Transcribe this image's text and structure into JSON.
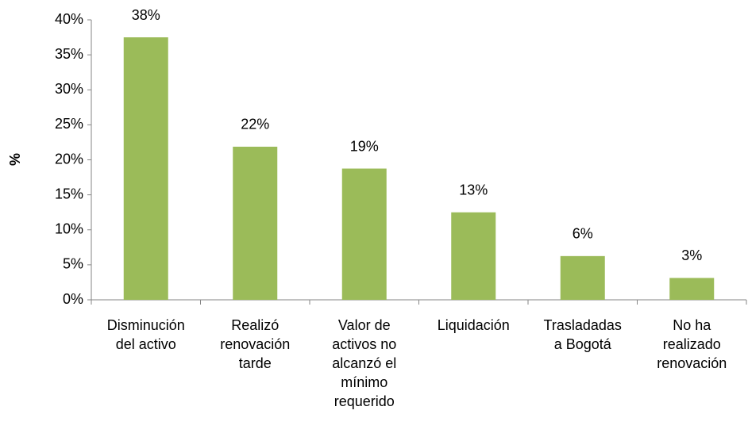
{
  "chart_data": {
    "type": "bar",
    "y_label": "%",
    "categories": [
      "Disminución\ndel activo",
      "Realizó\nrenovación\ntarde",
      "Valor de\nactivos no\nalcanzó el\nmínimo\nrequerido",
      "Liquidación",
      "Trasladadas\na Bogotá",
      "No ha\nrealizado\nrenovación"
    ],
    "values": [
      37.5,
      21.875,
      18.75,
      12.5,
      6.25,
      3.125
    ],
    "value_labels": [
      "38%",
      "22%",
      "19%",
      "13%",
      "6%",
      "3%"
    ],
    "color": "#9bbb59",
    "ylim": [
      0,
      40
    ],
    "yticks": [
      {
        "value": 0,
        "label": "0%"
      },
      {
        "value": 5,
        "label": "5%"
      },
      {
        "value": 10,
        "label": "10%"
      },
      {
        "value": 15,
        "label": "15%"
      },
      {
        "value": 20,
        "label": "20%"
      },
      {
        "value": 25,
        "label": "25%"
      },
      {
        "value": 30,
        "label": "30%"
      },
      {
        "value": 35,
        "label": "35%"
      },
      {
        "value": 40,
        "label": "40%"
      }
    ],
    "grid": false
  }
}
